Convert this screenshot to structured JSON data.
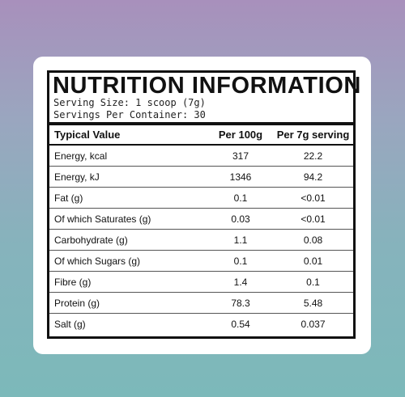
{
  "label": {
    "title": "NUTRITION INFORMATION",
    "serving_size": "Serving Size: 1 scoop (7g)",
    "servings_per_container": "Servings Per Container: 30"
  },
  "table": {
    "headers": {
      "name": "Typical Value",
      "per_100g": "Per 100g",
      "per_serving": "Per 7g serving"
    },
    "rows": [
      {
        "name": "Energy, kcal",
        "per_100g": "317",
        "per_serving": "22.2"
      },
      {
        "name": "Energy, kJ",
        "per_100g": "1346",
        "per_serving": "94.2"
      },
      {
        "name": "Fat (g)",
        "per_100g": "0.1",
        "per_serving": "<0.01"
      },
      {
        "name": "Of which Saturates (g)",
        "per_100g": "0.03",
        "per_serving": "<0.01"
      },
      {
        "name": "Carbohydrate (g)",
        "per_100g": "1.1",
        "per_serving": "0.08"
      },
      {
        "name": "Of which Sugars (g)",
        "per_100g": "0.1",
        "per_serving": "0.01"
      },
      {
        "name": "Fibre (g)",
        "per_100g": "1.4",
        "per_serving": "0.1"
      },
      {
        "name": "Protein (g)",
        "per_100g": "78.3",
        "per_serving": "5.48"
      },
      {
        "name": "Salt (g)",
        "per_100g": "0.54",
        "per_serving": "0.037"
      }
    ]
  }
}
